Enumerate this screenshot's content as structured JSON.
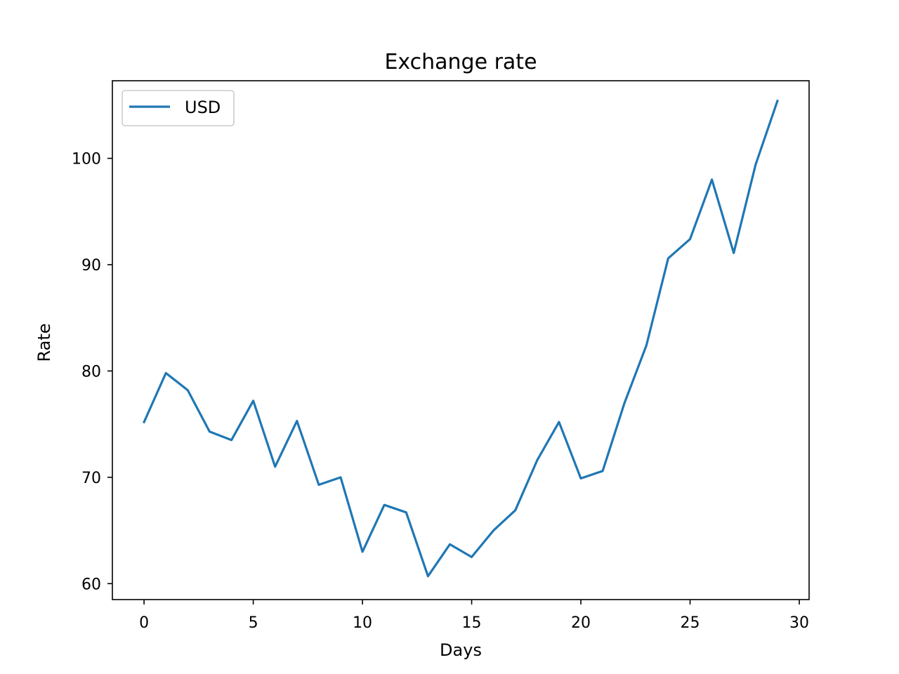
{
  "chart_data": {
    "type": "line",
    "title": "Exchange rate",
    "xlabel": "Days",
    "ylabel": "Rate",
    "xlim": [
      -1.45,
      30.45
    ],
    "ylim": [
      58.5,
      107.3
    ],
    "xticks": [
      0,
      5,
      10,
      15,
      20,
      25,
      30
    ],
    "yticks": [
      60,
      70,
      80,
      90,
      100
    ],
    "grid": false,
    "legend_position": "top-left",
    "series": [
      {
        "name": "USD",
        "color": "#1f77b4",
        "x": [
          0,
          1,
          2,
          3,
          4,
          5,
          6,
          7,
          8,
          9,
          10,
          11,
          12,
          13,
          14,
          15,
          16,
          17,
          18,
          19,
          20,
          21,
          22,
          23,
          24,
          25,
          26,
          27,
          28,
          29
        ],
        "y": [
          75.2,
          79.8,
          78.2,
          74.3,
          73.5,
          77.2,
          71.0,
          75.3,
          69.3,
          70.0,
          63.0,
          67.4,
          66.7,
          60.7,
          63.7,
          62.5,
          65.0,
          66.9,
          71.6,
          75.2,
          69.9,
          70.6,
          77.0,
          82.4,
          90.6,
          92.4,
          98.0,
          91.1,
          99.4,
          105.4
        ]
      }
    ]
  }
}
